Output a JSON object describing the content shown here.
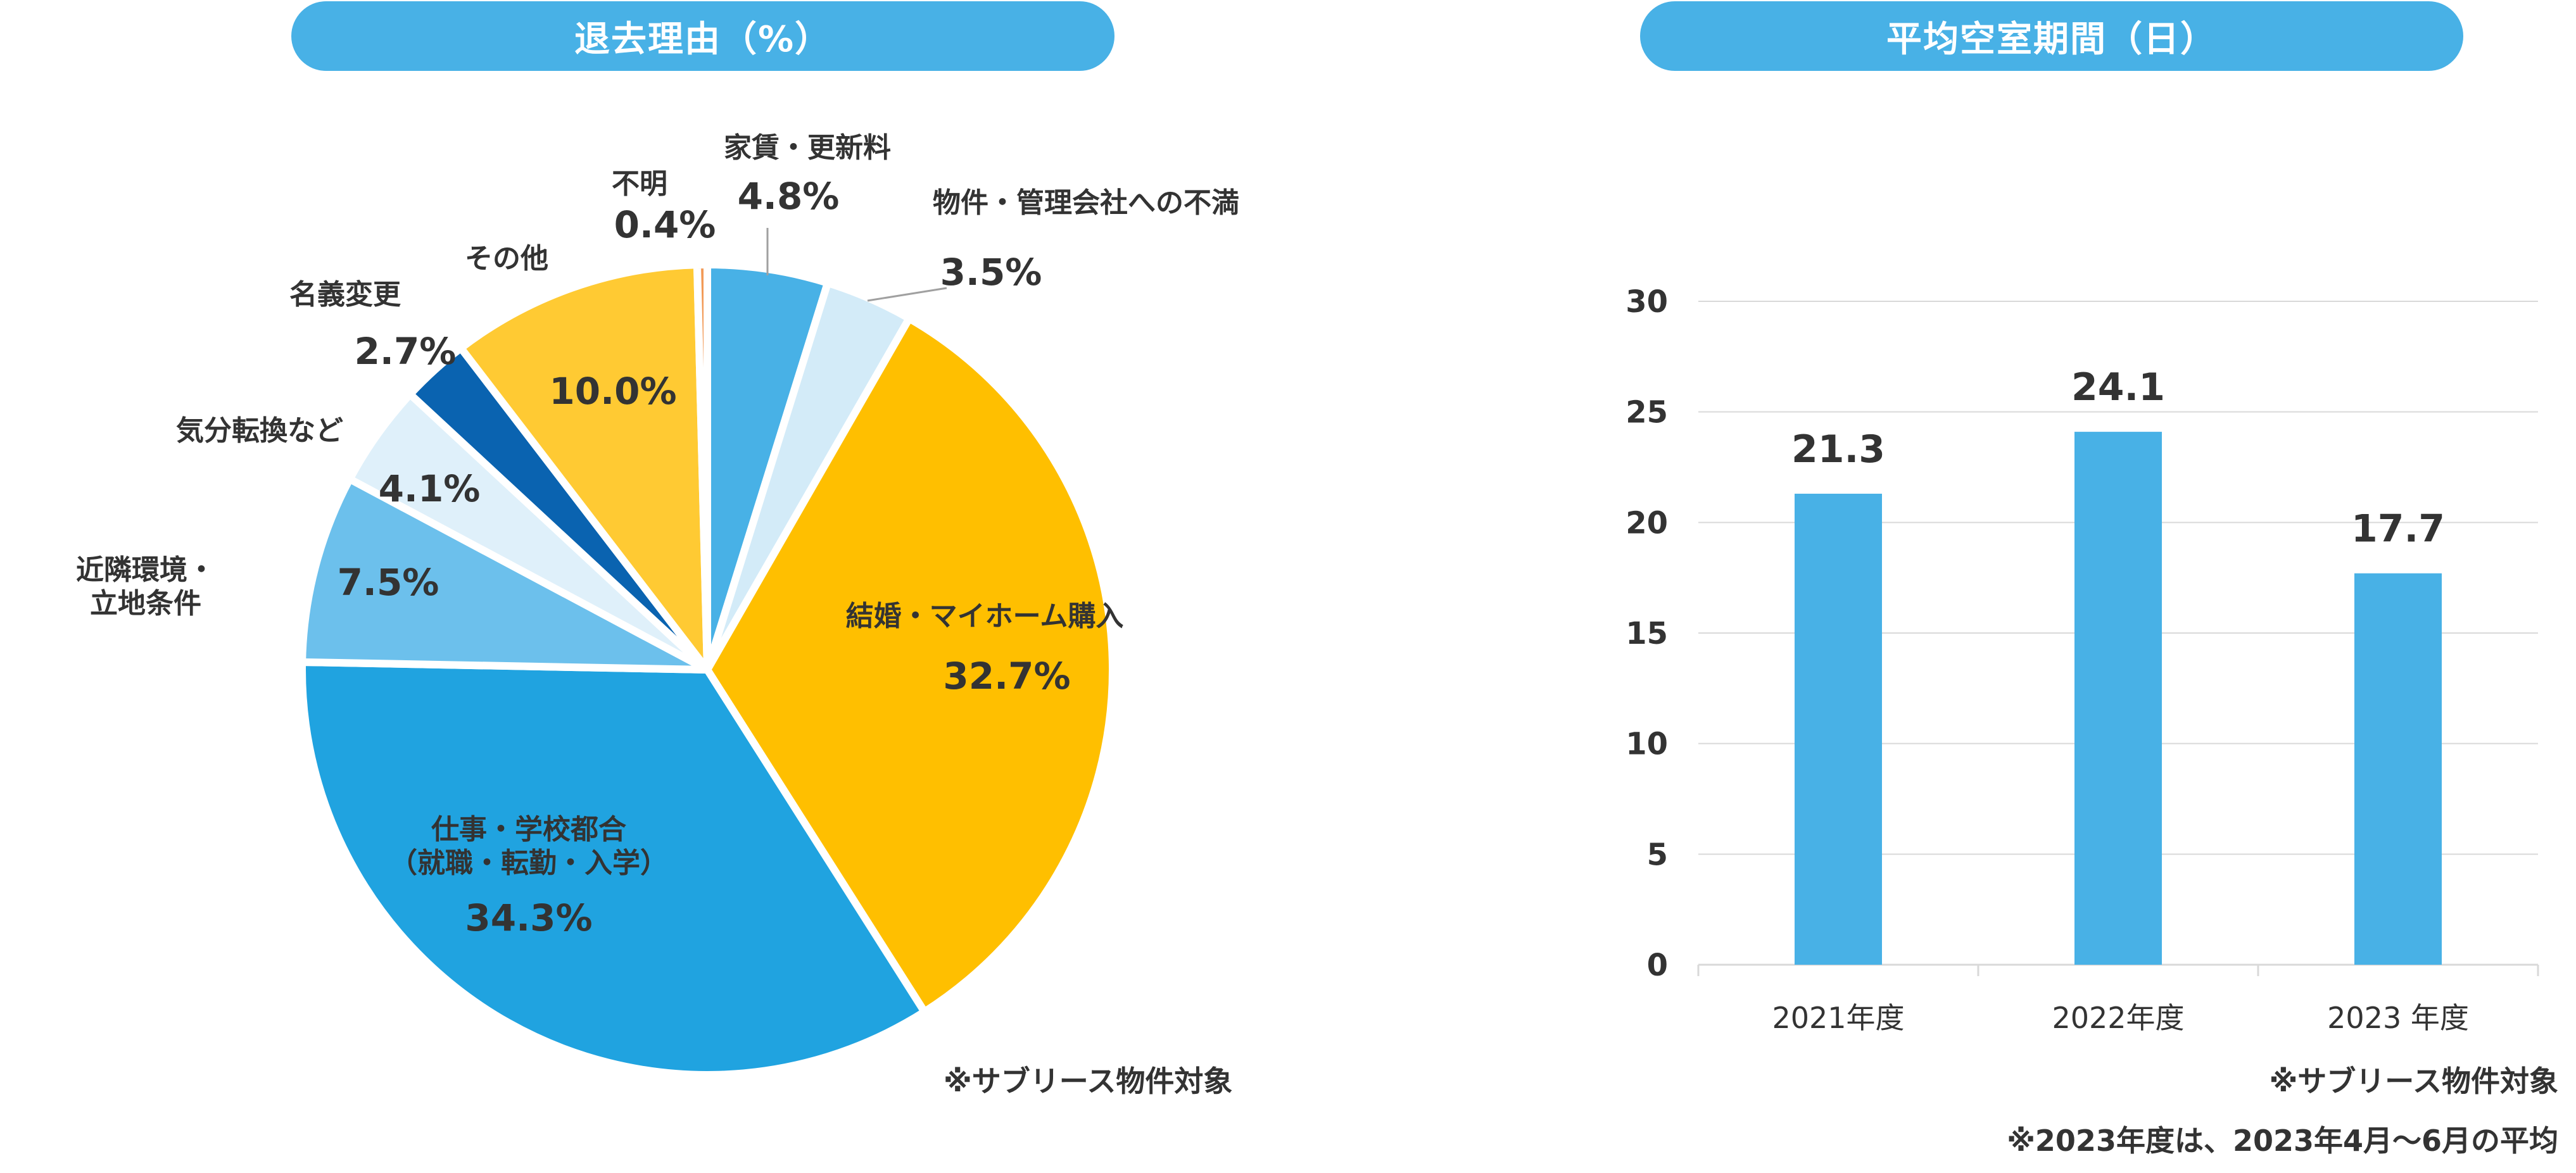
{
  "colors": {
    "banner": "#48b1e6",
    "bar": "#48b1e6",
    "grid": "#d9d9d9",
    "leader": "#a0a0a0"
  },
  "notes": {
    "pie_footnote": "※サブリース物件対象",
    "bar_footnote_1": "※サブリース物件対象",
    "bar_footnote_2": "※2023年度は、2023年4月～6月の平均"
  },
  "chart_data": [
    {
      "type": "pie",
      "title": "退去理由（%）",
      "start_angle_deg": 0,
      "direction": "clockwise",
      "slices": [
        {
          "label": "家賃・更新料",
          "value": 4.8,
          "value_text": "4.8%",
          "color": "#48b1e6"
        },
        {
          "label": "物件・管理会社への不満",
          "value": 3.5,
          "value_text": "3.5%",
          "color": "#d3ebf8"
        },
        {
          "label": "結婚・マイホーム購入",
          "value": 32.7,
          "value_text": "32.7%",
          "color": "#ffbf00"
        },
        {
          "label": "仕事・学校都合\n（就職・転勤・入学）",
          "value": 34.3,
          "value_text": "34.3%",
          "color": "#20a3e0"
        },
        {
          "label": "近隣環境・\n立地条件",
          "value": 7.5,
          "value_text": "7.5%",
          "color": "#6cc0ec"
        },
        {
          "label": "気分転換など",
          "value": 4.1,
          "value_text": "4.1%",
          "color": "#dff0fa"
        },
        {
          "label": "名義変更",
          "value": 2.7,
          "value_text": "2.7%",
          "color": "#0a63b0"
        },
        {
          "label": "その他",
          "value": 10.0,
          "value_text": "10.0%",
          "color": "#ffca33"
        },
        {
          "label": "不明",
          "value": 0.4,
          "value_text": "0.4%",
          "color": "#f29a57"
        }
      ]
    },
    {
      "type": "bar",
      "title": "平均空室期間（日）",
      "categories": [
        "2021年度",
        "2022年度",
        "2023 年度"
      ],
      "values": [
        21.3,
        24.1,
        17.7
      ],
      "value_labels": [
        "21.3",
        "24.1",
        "17.7"
      ],
      "ylim": [
        0,
        30
      ],
      "yticks": [
        0,
        5,
        10,
        15,
        20,
        25,
        30
      ],
      "grid": true,
      "xlabel": "",
      "ylabel": ""
    }
  ]
}
